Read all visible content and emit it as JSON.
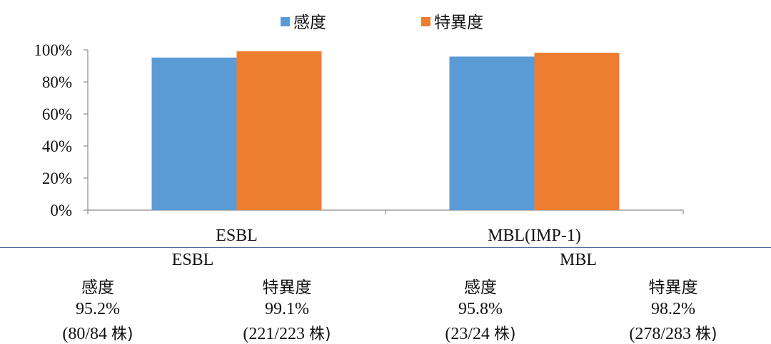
{
  "chart_data": {
    "type": "bar",
    "categories": [
      "ESBL",
      "MBL(IMP-1)"
    ],
    "series": [
      {
        "name": "感度",
        "values": [
          95.2,
          95.8
        ],
        "color": "#5b9bd5"
      },
      {
        "name": "特異度",
        "values": [
          99.1,
          98.2
        ],
        "color": "#ed7d31"
      }
    ],
    "ylim": [
      0,
      100
    ],
    "yticks": [
      "0%",
      "20%",
      "40%",
      "60%",
      "80%",
      "100%"
    ],
    "legend": "top-center",
    "grid": false
  },
  "table": {
    "groups": [
      {
        "name": "ESBL",
        "cols": [
          {
            "header": "感度",
            "value": "95.2%",
            "count": "(80/84",
            "unit": "株)"
          },
          {
            "header": "特異度",
            "value": "99.1%",
            "count": "(221/223",
            "unit": "株)"
          }
        ]
      },
      {
        "name": "MBL",
        "cols": [
          {
            "header": "感度",
            "value": "95.8%",
            "count": "(23/24",
            "unit": "株)"
          },
          {
            "header": "特異度",
            "value": "98.2%",
            "count": "(278/283",
            "unit": "株)"
          }
        ]
      }
    ]
  }
}
